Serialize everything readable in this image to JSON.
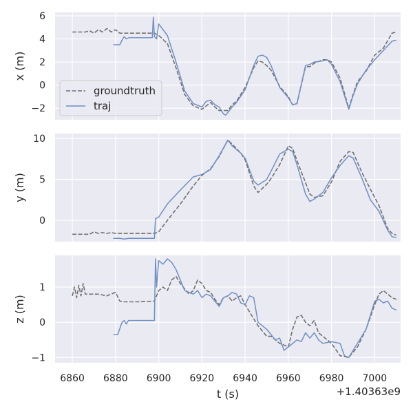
{
  "chart_data": {
    "type": "line",
    "xlabel": "t (s)",
    "x_offset_label": "+1.40363e9",
    "xlim": [
      6852,
      7012
    ],
    "xticks": [
      6860,
      6880,
      6900,
      6920,
      6940,
      6960,
      6980,
      7000
    ],
    "legend": {
      "placement": "lower-left",
      "entries": [
        "groundtruth",
        "traj"
      ]
    },
    "colors": {
      "groundtruth": "#707070",
      "traj": "#6f8fc4",
      "panel_bg": "#eaeaf2",
      "grid": "#ffffff"
    },
    "panels": [
      {
        "ylabel": "x (m)",
        "ylim": [
          -3,
          6.3
        ],
        "yticks": [
          -2,
          0,
          2,
          4,
          6
        ],
        "series": [
          {
            "name": "groundtruth",
            "style": "dashed",
            "x": [
              6860,
              6866,
              6868,
              6870,
              6872,
              6874,
              6876,
              6878,
              6880,
              6882,
              6890,
              6898,
              6900,
              6904,
              6908,
              6912,
              6916,
              6920,
              6922,
              6924,
              6926,
              6928,
              6932,
              6934,
              6936,
              6940,
              6944,
              6946,
              6948,
              6950,
              6952,
              6956,
              6960,
              6962,
              6964,
              6968,
              6970,
              6972,
              6976,
              6978,
              6980,
              6984,
              6988,
              6990,
              6992,
              6996,
              7000,
              7004,
              7008,
              7010
            ],
            "values": [
              4.6,
              4.6,
              4.7,
              4.5,
              4.8,
              4.6,
              4.9,
              4.6,
              4.8,
              4.5,
              4.5,
              4.5,
              4.3,
              3.6,
              1.5,
              -0.8,
              -1.8,
              -2.1,
              -1.8,
              -1.5,
              -1.9,
              -2.2,
              -2.2,
              -1.7,
              -1.4,
              -0.2,
              1.5,
              2.1,
              2.0,
              1.7,
              1.3,
              -0.1,
              -1.0,
              -1.7,
              -1.6,
              1.6,
              1.6,
              1.9,
              2.2,
              2.2,
              2.0,
              0.6,
              -2.0,
              -0.8,
              0.3,
              1.2,
              2.6,
              3.2,
              4.5,
              4.6
            ]
          },
          {
            "name": "traj",
            "style": "solid",
            "x": [
              6879,
              6882,
              6883,
              6884,
              6885,
              6886,
              6888,
              6897,
              6897.5,
              6898,
              6899,
              6900,
              6904,
              6908,
              6912,
              6916,
              6920,
              6922,
              6924,
              6926,
              6928,
              6930,
              6931,
              6934,
              6936,
              6940,
              6944,
              6946,
              6948,
              6950,
              6952,
              6956,
              6960,
              6962,
              6964,
              6968,
              6970,
              6972,
              6976,
              6978,
              6980,
              6984,
              6988,
              6990,
              6992,
              6996,
              7000,
              7004,
              7008,
              7010
            ],
            "values": [
              3.5,
              3.5,
              3.9,
              4.2,
              4.0,
              4.1,
              4.1,
              4.1,
              5.9,
              4.2,
              4.0,
              5.3,
              4.3,
              2.0,
              -0.5,
              -1.6,
              -1.9,
              -1.4,
              -1.3,
              -1.7,
              -1.9,
              -2.5,
              -2.6,
              -1.9,
              -1.5,
              -0.4,
              1.7,
              2.5,
              2.6,
              2.4,
              1.7,
              -0.2,
              -1.1,
              -1.7,
              -1.6,
              1.7,
              1.8,
              2.0,
              2.1,
              2.2,
              1.8,
              0.3,
              -2.1,
              -0.9,
              0.1,
              1.3,
              2.2,
              3.0,
              3.8,
              3.9
            ]
          }
        ]
      },
      {
        "ylabel": "y (m)",
        "ylim": [
          -2.6,
          10.6
        ],
        "yticks": [
          0,
          5,
          10
        ],
        "series": [
          {
            "name": "groundtruth",
            "style": "dashed",
            "x": [
              6860,
              6868,
              6870,
              6872,
              6874,
              6876,
              6878,
              6880,
              6890,
              6898,
              6900,
              6904,
              6910,
              6916,
              6920,
              6924,
              6928,
              6932,
              6934,
              6938,
              6940,
              6944,
              6946,
              6950,
              6952,
              6956,
              6960,
              6962,
              6964,
              6968,
              6970,
              6972,
              6976,
              6980,
              6984,
              6988,
              6990,
              6994,
              6998,
              7002,
              7006,
              7008,
              7010
            ],
            "values": [
              -1.7,
              -1.7,
              -1.4,
              -1.6,
              -1.5,
              -1.6,
              -1.5,
              -1.6,
              -1.6,
              -1.6,
              -1.4,
              0.0,
              2.0,
              4.2,
              5.5,
              6.3,
              7.8,
              9.8,
              9.3,
              8.2,
              7.4,
              4.2,
              3.4,
              4.4,
              5.1,
              6.8,
              9.1,
              8.8,
              7.3,
              4.6,
              3.2,
              2.8,
              3.0,
              4.7,
              7.2,
              8.4,
              8.3,
              5.9,
              3.8,
              1.8,
              -1.0,
              -1.6,
              -1.8
            ]
          },
          {
            "name": "traj",
            "style": "solid",
            "x": [
              6879,
              6882,
              6884,
              6886,
              6898,
              6898.5,
              6900,
              6904,
              6910,
              6916,
              6920,
              6924,
              6928,
              6932,
              6934,
              6938,
              6940,
              6944,
              6946,
              6950,
              6952,
              6956,
              6960,
              6962,
              6964,
              6968,
              6970,
              6972,
              6976,
              6980,
              6984,
              6988,
              6990,
              6994,
              6998,
              7002,
              7006,
              7008,
              7010
            ],
            "values": [
              -2.2,
              -2.2,
              -2.3,
              -2.2,
              -2.2,
              0.2,
              0.4,
              2.0,
              3.7,
              5.3,
              5.6,
              6.2,
              7.9,
              9.8,
              9.1,
              8.2,
              7.6,
              4.8,
              4.3,
              5.0,
              6.0,
              8.1,
              8.7,
              8.4,
              6.8,
              3.2,
              2.3,
              2.6,
              3.4,
              5.2,
              6.7,
              7.9,
              7.6,
              5.2,
              2.5,
              1.1,
              -1.2,
              -2.0,
              -2.1
            ]
          }
        ]
      },
      {
        "ylabel": "z (m)",
        "ylim": [
          -1.15,
          1.9
        ],
        "yticks": [
          -1,
          0,
          1
        ],
        "series": [
          {
            "name": "groundtruth",
            "style": "dashed",
            "x": [
              6860,
              6861,
              6862,
              6863,
              6864,
              6865,
              6866,
              6868,
              6872,
              6876,
              6880,
              6882,
              6884,
              6890,
              6898,
              6900,
              6902,
              6904,
              6906,
              6908,
              6910,
              6912,
              6914,
              6916,
              6918,
              6920,
              6922,
              6924,
              6926,
              6928,
              6930,
              6932,
              6934,
              6936,
              6938,
              6940,
              6942,
              6944,
              6946,
              6950,
              6952,
              6956,
              6958,
              6960,
              6962,
              6964,
              6966,
              6968,
              6970,
              6972,
              6974,
              6976,
              6980,
              6984,
              6988,
              6992,
              6996,
              7000,
              7002,
              7004,
              7006,
              7008,
              7010
            ],
            "values": [
              0.75,
              1.0,
              0.7,
              1.05,
              0.75,
              1.1,
              0.8,
              0.8,
              0.8,
              0.75,
              0.85,
              0.6,
              0.58,
              0.58,
              0.6,
              0.9,
              1.0,
              0.9,
              1.2,
              1.3,
              1.1,
              0.95,
              0.8,
              0.9,
              1.2,
              1.1,
              0.9,
              0.85,
              0.65,
              0.5,
              0.7,
              0.75,
              0.6,
              0.7,
              0.75,
              0.5,
              0.3,
              0.1,
              -0.1,
              -0.4,
              -0.4,
              -0.6,
              -0.65,
              -0.7,
              -0.2,
              0.15,
              0.2,
              0.0,
              -0.1,
              0.05,
              -0.3,
              -0.4,
              -0.6,
              -0.95,
              -1.0,
              -0.7,
              -0.2,
              0.5,
              0.8,
              0.9,
              0.8,
              0.7,
              0.65
            ]
          },
          {
            "name": "traj",
            "style": "solid",
            "x": [
              6879,
              6881,
              6883,
              6884,
              6885,
              6886,
              6898,
              6898.5,
              6899,
              6900,
              6902,
              6904,
              6906,
              6908,
              6910,
              6912,
              6914,
              6916,
              6918,
              6920,
              6922,
              6924,
              6926,
              6928,
              6930,
              6932,
              6934,
              6936,
              6938,
              6940,
              6942,
              6944,
              6946,
              6948,
              6950,
              6952,
              6954,
              6956,
              6958,
              6960,
              6962,
              6964,
              6966,
              6968,
              6970,
              6972,
              6974,
              6976,
              6980,
              6984,
              6986,
              6988,
              6992,
              6996,
              7000,
              7002,
              7004,
              7006,
              7008,
              7010
            ],
            "values": [
              -0.35,
              -0.35,
              0.0,
              0.05,
              -0.05,
              0.05,
              0.05,
              1.8,
              1.0,
              1.75,
              1.65,
              1.8,
              1.7,
              1.5,
              1.2,
              0.9,
              0.85,
              0.8,
              0.9,
              0.7,
              0.8,
              0.75,
              0.6,
              0.45,
              0.7,
              0.75,
              0.85,
              0.8,
              0.55,
              0.5,
              0.75,
              0.7,
              0.0,
              -0.1,
              -0.2,
              -0.35,
              -0.5,
              -0.45,
              -0.8,
              -0.7,
              -0.6,
              -0.5,
              -0.55,
              -0.3,
              -0.45,
              -0.3,
              -0.5,
              -0.6,
              -0.55,
              -0.6,
              -0.95,
              -1.0,
              -0.6,
              -0.2,
              0.6,
              0.65,
              0.55,
              0.6,
              0.4,
              0.35
            ]
          }
        ]
      }
    ]
  }
}
